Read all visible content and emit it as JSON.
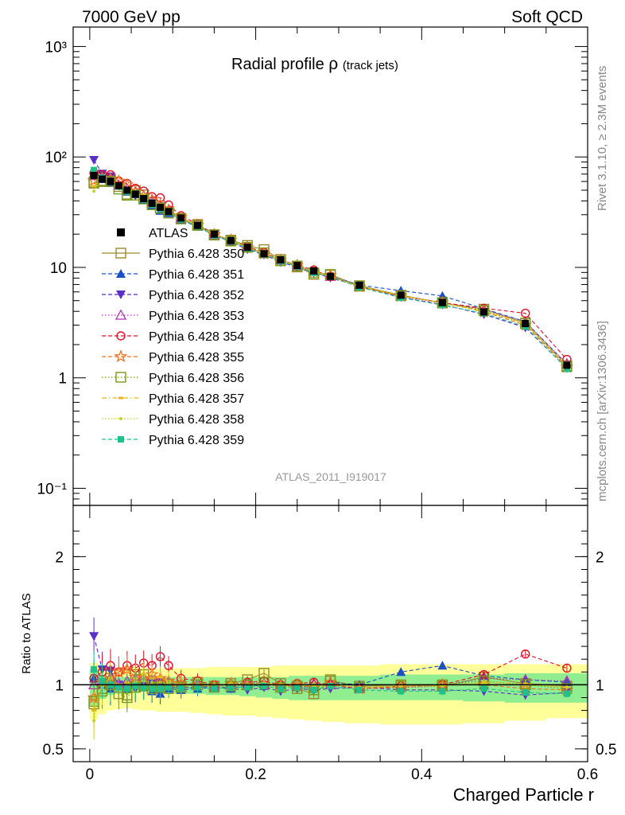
{
  "header": {
    "left": "7000 GeV pp",
    "right": "Soft QCD"
  },
  "side_labels": {
    "rivet": "Rivet 3.1.10, ≥ 2.3M events",
    "mcplots": "mcplots.cern.ch [arXiv:1306.3436]"
  },
  "chart_data": [
    {
      "panel": "main",
      "type": "line",
      "title_main": "Radial profile",
      "title_rho": "ρ",
      "title_sub": "(track jets)",
      "watermark": "ATLAS_2011_I919017",
      "yscale": "log",
      "ylim": [
        0.07,
        1500
      ],
      "xlim": [
        -0.02,
        0.6
      ],
      "ytick_labels": [
        "10⁻¹",
        "1",
        "10",
        "10²",
        "10³"
      ],
      "ytick_values": [
        0.1,
        1,
        10,
        100,
        1000
      ],
      "x": [
        0.005,
        0.015,
        0.025,
        0.035,
        0.045,
        0.055,
        0.065,
        0.075,
        0.085,
        0.095,
        0.11,
        0.13,
        0.15,
        0.17,
        0.19,
        0.21,
        0.23,
        0.25,
        0.27,
        0.29,
        0.325,
        0.375,
        0.425,
        0.475,
        0.525,
        0.575
      ],
      "data": {
        "name": "ATLAS",
        "values": [
          68,
          63,
          60,
          55,
          50,
          46,
          42,
          38,
          35,
          32,
          28,
          24,
          20,
          17.5,
          15.2,
          13.3,
          11.7,
          10.4,
          9.3,
          8.3,
          6.9,
          5.6,
          4.8,
          3.95,
          3.1,
          1.3
        ]
      },
      "legend": {
        "position": "middle-left",
        "entries": [
          "ATLAS",
          "Pythia 6.428 350",
          "Pythia 6.428 351",
          "Pythia 6.428 352",
          "Pythia 6.428 353",
          "Pythia 6.428 354",
          "Pythia 6.428 355",
          "Pythia 6.428 356",
          "Pythia 6.428 357",
          "Pythia 6.428 358",
          "Pythia 6.428 359"
        ]
      }
    },
    {
      "panel": "ratio",
      "type": "line",
      "ylabel": "Ratio to ATLAS",
      "xlabel": "Charged Particle r",
      "ylim": [
        0.4,
        2.4
      ],
      "xlim": [
        -0.02,
        0.6
      ],
      "ytick_labels": [
        "0.5",
        "1",
        "2"
      ],
      "ytick_values": [
        0.5,
        1,
        2
      ],
      "xtick_labels": [
        "0",
        "0.2",
        "0.4",
        "0.6"
      ],
      "xtick_values": [
        0,
        0.2,
        0.4,
        0.6
      ],
      "band_yellow": {
        "lo": [
          0.73,
          0.77,
          0.8,
          0.81,
          0.82,
          0.81,
          0.8,
          0.8,
          0.79,
          0.79,
          0.79,
          0.78,
          0.77,
          0.76,
          0.76,
          0.75,
          0.74,
          0.73,
          0.72,
          0.71,
          0.7,
          0.69,
          0.69,
          0.7,
          0.72,
          0.74
        ],
        "hi": [
          1.17,
          1.15,
          1.14,
          1.13,
          1.13,
          1.13,
          1.13,
          1.13,
          1.13,
          1.13,
          1.13,
          1.13,
          1.14,
          1.14,
          1.14,
          1.14,
          1.15,
          1.15,
          1.15,
          1.15,
          1.15,
          1.16,
          1.16,
          1.16,
          1.16,
          1.16
        ]
      },
      "band_green": {
        "lo": [
          0.84,
          0.89,
          0.92,
          0.93,
          0.94,
          0.95,
          0.95,
          0.95,
          0.94,
          0.94,
          0.93,
          0.93,
          0.92,
          0.92,
          0.91,
          0.9,
          0.89,
          0.88,
          0.88,
          0.88,
          0.88,
          0.88,
          0.88,
          0.87,
          0.86,
          0.86
        ],
        "hi": [
          1.12,
          1.08,
          1.07,
          1.06,
          1.06,
          1.06,
          1.06,
          1.06,
          1.06,
          1.06,
          1.06,
          1.06,
          1.06,
          1.06,
          1.06,
          1.06,
          1.06,
          1.07,
          1.07,
          1.07,
          1.07,
          1.08,
          1.08,
          1.08,
          1.09,
          1.09
        ]
      },
      "series": [
        {
          "name": "Pythia 6.428 350",
          "color": "#9a8a2a",
          "marker": "open-square",
          "dash": "solid",
          "values": [
            0.85,
            0.97,
            1.05,
            0.98,
            0.92,
            1.08,
            1.08,
            1.02,
            0.98,
            1.0,
            0.99,
            1.02,
            0.99,
            1.01,
            1.04,
            1.09,
            1.01,
            0.97,
            0.93,
            1.03,
            0.99,
            1.0,
            0.99,
            1.06,
            1.01,
            0.99
          ]
        },
        {
          "name": "Pythia 6.428 351",
          "color": "#1a4fc6",
          "marker": "triangle-up",
          "dash": "dashed",
          "values": [
            1.05,
            1.0,
            0.97,
            1.02,
            0.97,
            1.0,
            0.98,
            0.95,
            0.93,
            0.97,
            0.96,
            0.97,
            0.98,
            0.97,
            1.0,
            0.99,
            1.01,
            0.99,
            0.98,
            1.02,
            1.0,
            1.1,
            1.15,
            1.07,
            1.04,
            1.02
          ]
        },
        {
          "name": "Pythia 6.428 352",
          "color": "#5a2ec8",
          "marker": "triangle-down",
          "dash": "dashed",
          "values": [
            1.38,
            1.12,
            1.11,
            1.0,
            0.98,
            0.97,
            0.99,
            1.01,
            1.02,
            0.98,
            0.98,
            0.98,
            0.99,
            0.97,
            0.96,
            0.98,
            0.95,
            0.97,
            0.96,
            0.97,
            0.98,
            0.96,
            0.96,
            0.95,
            0.92,
            0.94
          ]
        },
        {
          "name": "Pythia 6.428 353",
          "color": "#b030b0",
          "marker": "open-triangle-up",
          "dash": "dotted",
          "values": [
            1.0,
            1.02,
            1.06,
            1.01,
            1.03,
            1.05,
            1.06,
            1.04,
            1.03,
            1.02,
            1.0,
            1.01,
            0.99,
            1.0,
            1.02,
            1.01,
            1.0,
            0.99,
            1.01,
            1.0,
            0.97,
            0.98,
            0.99,
            1.05,
            1.04,
            1.03
          ]
        },
        {
          "name": "Pythia 6.428 354",
          "color": "#e0102a",
          "marker": "open-circle",
          "dash": "dashed",
          "values": [
            1.05,
            1.1,
            1.15,
            1.1,
            1.15,
            1.13,
            1.17,
            1.15,
            1.22,
            1.15,
            1.05,
            1.03,
            1.0,
            1.0,
            1.02,
            1.03,
            1.0,
            1.01,
            1.02,
            1.0,
            0.97,
            0.99,
            1.0,
            1.08,
            1.24,
            1.13
          ]
        },
        {
          "name": "Pythia 6.428 355",
          "color": "#f07020",
          "marker": "open-star",
          "dash": "dashed",
          "values": [
            0.9,
            1.02,
            1.05,
            1.1,
            1.12,
            1.06,
            1.05,
            1.08,
            1.05,
            1.03,
            1.01,
            1.0,
            0.99,
            1.01,
            1.0,
            1.0,
            0.99,
            1.0,
            0.98,
            1.02,
            0.97,
            0.98,
            1.0,
            1.0,
            0.97,
            0.96
          ]
        },
        {
          "name": "Pythia 6.428 356",
          "color": "#7a9a1a",
          "marker": "open-square",
          "dash": "dotted",
          "values": [
            0.87,
            0.95,
            1.0,
            0.93,
            0.9,
            0.98,
            0.99,
            0.97,
            0.98,
            0.97,
            0.98,
            1.0,
            0.98,
            0.99,
            1.0,
            1.02,
            0.98,
            0.99,
            0.96,
            1.04,
            0.98,
            0.99,
            1.0,
            1.03,
            1.0,
            0.97
          ]
        },
        {
          "name": "Pythia 6.428 357",
          "color": "#e8b818",
          "marker": "dash-dot",
          "dash": "dashdot",
          "values": [
            0.8,
            1.0,
            1.05,
            1.0,
            1.02,
            1.05,
            1.08,
            1.05,
            1.06,
            1.03,
            1.0,
            1.0,
            1.0,
            1.01,
            1.0,
            1.01,
            1.0,
            1.0,
            0.99,
            1.0,
            0.98,
            0.99,
            0.99,
            1.02,
            1.01,
            0.98
          ]
        },
        {
          "name": "Pythia 6.428 358",
          "color": "#c8d020",
          "marker": "small-dot",
          "dash": "dotted",
          "values": [
            0.72,
            0.98,
            1.02,
            0.99,
            1.0,
            1.02,
            1.03,
            1.02,
            1.02,
            1.01,
            0.99,
            1.0,
            0.99,
            1.0,
            1.0,
            1.01,
            0.99,
            1.0,
            0.99,
            1.0,
            0.98,
            0.99,
            0.99,
            1.01,
            1.0,
            0.98
          ]
        },
        {
          "name": "Pythia 6.428 359",
          "color": "#20c08a",
          "marker": "filled-square",
          "dash": "dashed",
          "values": [
            1.12,
            1.03,
            1.0,
            0.98,
            0.97,
            0.99,
            0.98,
            0.97,
            0.97,
            0.98,
            0.97,
            0.98,
            0.97,
            0.98,
            0.98,
            0.99,
            0.97,
            0.98,
            0.96,
            0.99,
            0.96,
            0.95,
            0.95,
            0.97,
            0.94,
            0.93
          ]
        }
      ]
    }
  ]
}
